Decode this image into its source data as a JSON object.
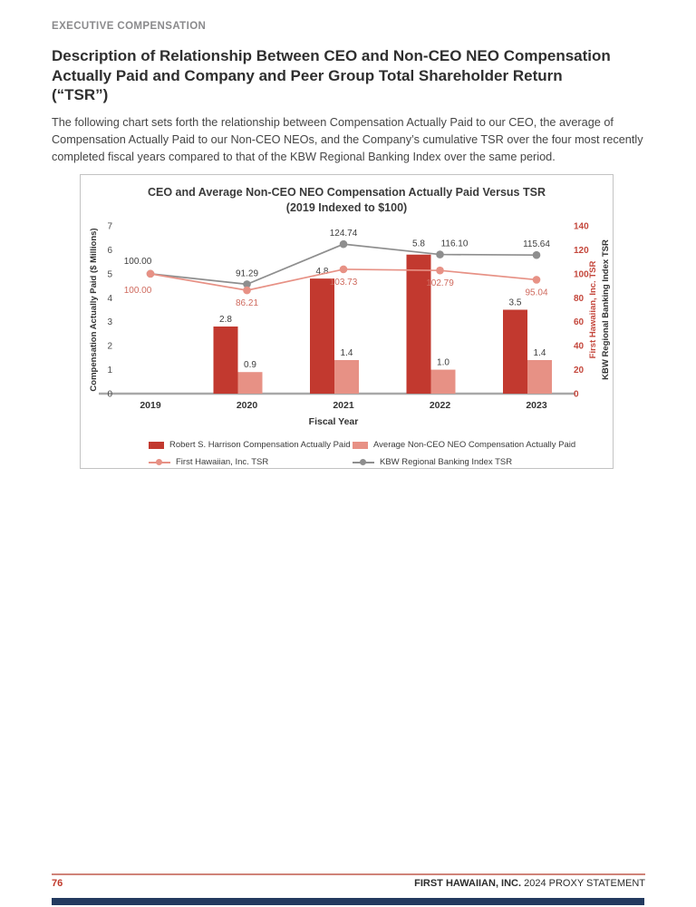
{
  "header": {
    "kicker": "EXECUTIVE COMPENSATION",
    "title_lines": [
      "Description of Relationship Between CEO and Non-CEO NEO Compensation",
      "Actually Paid and Company and Peer Group Total Shareholder Return",
      "(“TSR”)"
    ]
  },
  "intro": {
    "text": "The following chart sets forth the relationship between Compensation Actually Paid to our CEO, the average of Compensation Actually Paid to our Non-CEO NEOs, and the Company’s cumulative TSR over the four most recently completed fiscal years compared to that of the KBW Regional Banking Index over the same period."
  },
  "chart_data": {
    "type": "combo-bar-line",
    "title": "CEO and Average Non-CEO NEO Compensation Actually Paid Versus TSR",
    "subtitle": "(2019 Indexed to $100)",
    "categories": [
      "2019",
      "2020",
      "2021",
      "2022",
      "2023"
    ],
    "xlabel": "Fiscal Year",
    "grid": false,
    "legend_position": "bottom",
    "left_axis": {
      "label": "Compensation Actually Paid ($ Millions)",
      "min": 0,
      "max": 7,
      "ticks": [
        0,
        1,
        2,
        3,
        4,
        5,
        6,
        7
      ]
    },
    "right_axis": {
      "labels": [
        "First Hawaiian, Inc. TSR",
        "KBW Regional Banking Index TSR"
      ],
      "min": 0,
      "max": 140,
      "ticks": [
        0,
        20,
        40,
        60,
        80,
        100,
        120,
        140
      ]
    },
    "series": [
      {
        "name": "Robert S. Harrison Compensation Actually Paid",
        "type": "bar",
        "axis": "left",
        "color": "#c2392f",
        "values": [
          null,
          2.8,
          4.8,
          5.8,
          3.5
        ],
        "labels": [
          "",
          "2.8",
          "4.8",
          "5.8",
          "3.5"
        ]
      },
      {
        "name": "Average Non-CEO NEO Compensation Actually Paid",
        "type": "bar",
        "axis": "left",
        "color": "#e79185",
        "values": [
          null,
          0.9,
          1.4,
          1.0,
          1.4
        ],
        "labels": [
          "",
          "0.9",
          "1.4",
          "1.0",
          "1.4"
        ]
      },
      {
        "name": "First Hawaiian, Inc. TSR",
        "type": "line",
        "axis": "right",
        "color": "#e79185",
        "values": [
          100.0,
          86.21,
          103.73,
          102.79,
          95.04
        ],
        "labels": [
          "100.00",
          "86.21",
          "103.73",
          "102.79",
          "95.04"
        ]
      },
      {
        "name": "KBW Regional Banking Index TSR",
        "type": "line",
        "axis": "right",
        "color": "#8e8e8e",
        "values": [
          100.0,
          91.29,
          124.74,
          116.1,
          115.64
        ],
        "labels": [
          "100.00",
          "91.29",
          "124.74",
          "116.10",
          "115.64"
        ]
      }
    ],
    "colors": {
      "right_tick_text": "#c4473c",
      "fhb_label_text": "#cf6a5e",
      "kbw_label_text": "#3d3d3d",
      "axis_line": "#a8a8a8"
    }
  },
  "footer": {
    "page_number": "76",
    "company": "FIRST HAWAIIAN, INC.",
    "document": "2024 PROXY STATEMENT",
    "accent_rule_color": "#d08379",
    "navy_bar_color": "#233a5f"
  }
}
